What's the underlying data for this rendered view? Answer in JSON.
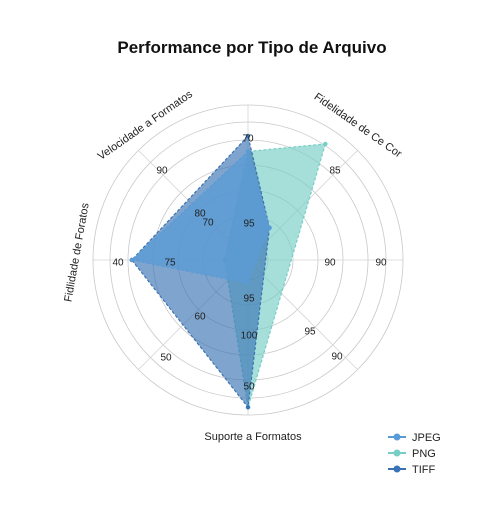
{
  "chart_data": {
    "type": "radar",
    "title": "Performance por Tipo de Arquivo",
    "axes": [
      "Fidelidade de Ce Cor",
      "Suporte a Formatos",
      "Fidlidade de Foratos",
      "Velocidade a Formatos"
    ],
    "rlim": [
      0,
      100
    ],
    "grid": true,
    "legend_position": "bottom-right",
    "tick_labels": [
      "70",
      "85",
      "90",
      "90",
      "95",
      "90",
      "50",
      "50",
      "60",
      "40",
      "75",
      "80",
      "90",
      "70",
      "95",
      "95",
      "100"
    ],
    "series": [
      {
        "name": "JPEG",
        "color": "#5B9BD5",
        "values": [
          25,
          15,
          75,
          70
        ]
      },
      {
        "name": "PNG",
        "color": "#76CEC6",
        "values": [
          90,
          95,
          15,
          70
        ]
      },
      {
        "name": "TIFF",
        "color": "#3A73B4",
        "values": [
          25,
          95,
          75,
          80
        ]
      }
    ]
  }
}
